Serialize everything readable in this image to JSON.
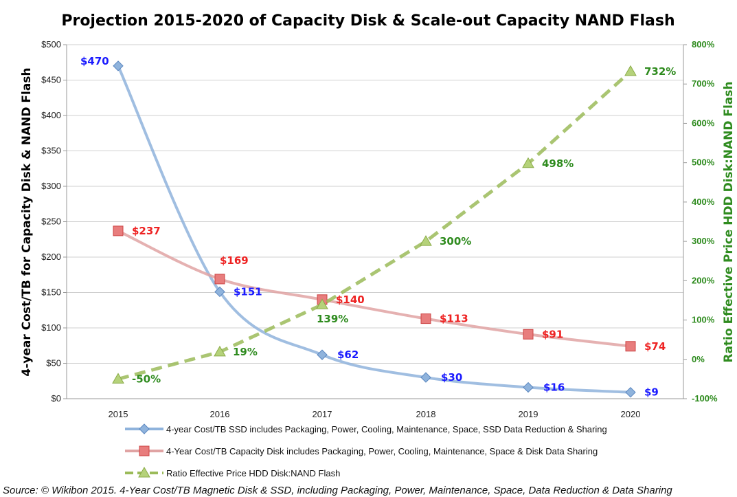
{
  "chart_data": {
    "type": "line",
    "title": "Projection 2015-2020 of Capacity Disk & Scale-out Capacity NAND Flash",
    "categories": [
      "2015",
      "2016",
      "2017",
      "2018",
      "2019",
      "2020"
    ],
    "ylabel": "4-year Cost/TB for Capacity Disk & NAND Flash",
    "y2label": "Ratio Effective Price HDD Disk:NAND Flash",
    "ylim": [
      0,
      500
    ],
    "y_ticks": [
      "$0",
      "$50",
      "$100",
      "$150",
      "$200",
      "$250",
      "$300",
      "$350",
      "$400",
      "$450",
      "$500"
    ],
    "y2lim": [
      -100,
      800
    ],
    "y2_ticks": [
      "-100%",
      "0%",
      "100%",
      "200%",
      "300%",
      "400%",
      "500%",
      "600%",
      "700%",
      "800%"
    ],
    "grid": true,
    "legend_placement": "bottom",
    "series": [
      {
        "name": "4-year Cost/TB SSD includes Packaging, Power, Cooling, Maintenance, Space, SSD Data Reduction & Sharing",
        "axis": "left",
        "values": [
          470,
          151,
          62,
          30,
          16,
          9
        ],
        "labels": [
          "$470",
          "$151",
          "$62",
          "$30",
          "$16",
          "$9"
        ],
        "color": "#8fb3dc",
        "marker": "diamond",
        "label_color": "#1a1aff"
      },
      {
        "name": "4-Year Cost/TB Capacity Disk includes Packaging, Power, Cooling, Maintenance, Space & Disk Data Sharing",
        "axis": "left",
        "values": [
          237,
          169,
          140,
          113,
          91,
          74
        ],
        "labels": [
          "$237",
          "$169",
          "$140",
          "$113",
          "$91",
          "$74"
        ],
        "color": "#e0a3a3",
        "marker": "square",
        "label_color": "#ee2222"
      },
      {
        "name": "Ratio Effective Price HDD Disk:NAND Flash",
        "axis": "right",
        "values": [
          -50,
          19,
          139,
          300,
          498,
          732
        ],
        "labels": [
          "-50%",
          "19%",
          "139%",
          "300%",
          "498%",
          "732%"
        ],
        "color": "#9bbb59",
        "marker": "triangle",
        "label_color": "#2e8b1e",
        "dashed": true
      }
    ]
  },
  "source": "Source: © Wikibon 2015. 4-Year Cost/TB Magnetic Disk & SSD, including Packaging, Power, Maintenance, Space, Data Reduction & Data Sharing"
}
